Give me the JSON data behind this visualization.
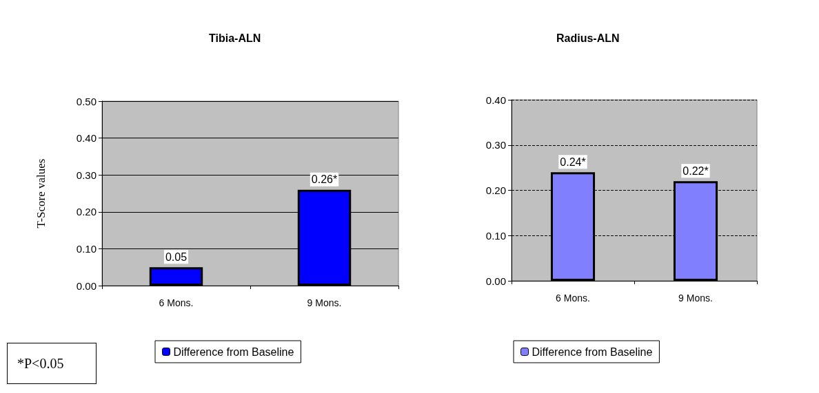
{
  "chart_data": [
    {
      "type": "bar",
      "title": "Tibia-ALN",
      "ylabel": "T-Score values",
      "categories": [
        "6 Mons.",
        "9 Mons."
      ],
      "series": [
        {
          "name": "Difference from Baseline",
          "color": "#0000ff",
          "values": [
            0.05,
            0.26
          ],
          "value_labels": [
            "0.05",
            "0.26*"
          ]
        }
      ],
      "ylim": [
        0,
        0.5
      ],
      "yticks": [
        {
          "value": 0,
          "label": "0.00"
        },
        {
          "value": 0.1,
          "label": "0.10"
        },
        {
          "value": 0.2,
          "label": "0.20"
        },
        {
          "value": 0.3,
          "label": "0.30"
        },
        {
          "value": 0.4,
          "label": "0.40"
        },
        {
          "value": 0.5,
          "label": "0.50"
        }
      ],
      "grid": "y",
      "legend": "bottom",
      "annotations": [
        "*P<0.05"
      ]
    },
    {
      "type": "bar",
      "title": "Radius-ALN",
      "categories": [
        "6 Mons.",
        "9 Mons."
      ],
      "series": [
        {
          "name": "Difference from Baseline",
          "color": "#8080ff",
          "values": [
            0.24,
            0.22
          ],
          "value_labels": [
            "0.24*",
            "0.22*"
          ]
        }
      ],
      "ylim": [
        0,
        0.4
      ],
      "yticks": [
        {
          "value": 0,
          "label": "0.00"
        },
        {
          "value": 0.1,
          "label": "0.10"
        },
        {
          "value": 0.2,
          "label": "0.20"
        },
        {
          "value": 0.3,
          "label": "0.30"
        },
        {
          "value": 0.4,
          "label": "0.40"
        }
      ],
      "grid": "y",
      "legend": "bottom"
    }
  ]
}
